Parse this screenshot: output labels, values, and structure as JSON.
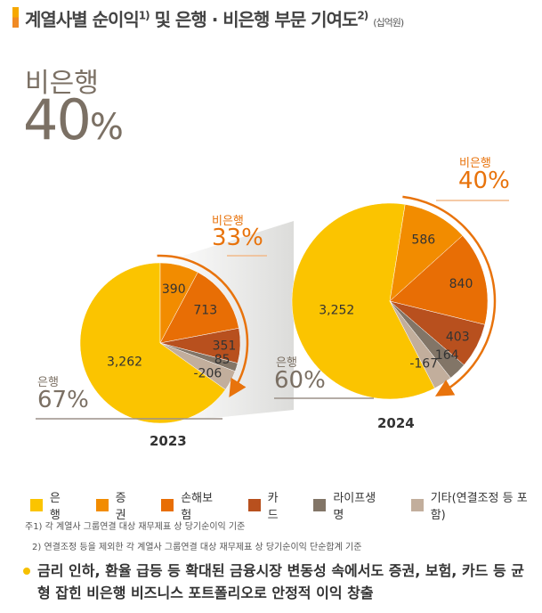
{
  "header": {
    "title": "계열사별 순이익",
    "sup1": "1)",
    "title2": " 및 은행 · 비은행 부문 기여도",
    "sup2": "2)",
    "unit": "(십억원)"
  },
  "headline": {
    "label": "비은행",
    "value": "40",
    "pct": "%"
  },
  "chart_data": {
    "type": "pie",
    "categories": [
      "은행",
      "증권",
      "손해보험",
      "카드",
      "라이프생명",
      "기타(연결조정 등 포함)"
    ],
    "colors": [
      "#fbc400",
      "#f28c00",
      "#e86e05",
      "#b8501e",
      "#827567",
      "#c2ae9c"
    ],
    "pies": [
      {
        "year": "2023",
        "values": [
          3262,
          390,
          713,
          351,
          85,
          -206
        ],
        "labels": [
          "3,262",
          "390",
          "713",
          "351",
          "85",
          "-206"
        ],
        "bank_label": "은행",
        "bank_pct": "67%",
        "nonbank_label": "비은행",
        "nonbank_pct": "33%"
      },
      {
        "year": "2024",
        "values": [
          3252,
          586,
          840,
          403,
          164,
          -167
        ],
        "labels": [
          "3,252",
          "586",
          "840",
          "403",
          "164",
          "-167"
        ],
        "bank_label": "은행",
        "bank_pct": "60%",
        "nonbank_label": "비은행",
        "nonbank_pct": "40%"
      }
    ]
  },
  "notes": [
    "주1) 각 계열사 그룹연결 대상 재무제표 상 당기순이익 기준",
    "2) 연결조정 등을 제외한 각 계열사 그룹연결 대상 재무제표 상 당기순이익 단순합계 기준"
  ],
  "bullet": "금리 인하, 환율 급등 등 확대된 금융시장 변동성 속에서도 증권, 보험, 카드 등 균형 잡힌 비은행 비즈니스 포트폴리오로 안정적 이익 창출"
}
